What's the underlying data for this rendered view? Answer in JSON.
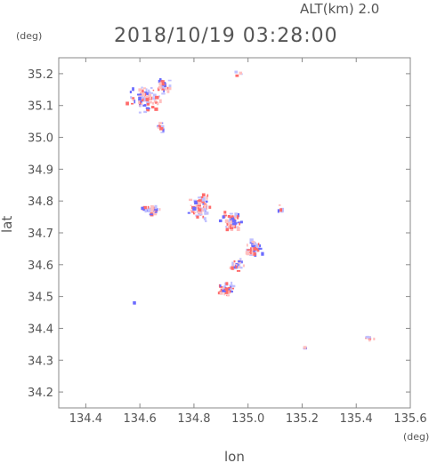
{
  "header": {
    "altitude": "ALT(km) 2.0",
    "datetime": "2018/10/19 03:28:00"
  },
  "chart_data": {
    "type": "scatter",
    "title": "2018/10/19 03:28:00",
    "subtitle": "ALT(km) 2.0",
    "xlabel": "lon",
    "ylabel": "lat",
    "x_unit": "(deg)",
    "y_unit": "(deg)",
    "xlim": [
      134.3,
      135.6
    ],
    "ylim": [
      34.15,
      35.25
    ],
    "xticks": [
      "134.4",
      "134.6",
      "134.8",
      "135.0",
      "135.2",
      "135.4",
      "135.6"
    ],
    "yticks": [
      "34.2",
      "34.3",
      "34.4",
      "34.5",
      "34.6",
      "34.7",
      "34.8",
      "34.9",
      "35.0",
      "35.1",
      "35.2"
    ],
    "colors": {
      "positive": "#ff6b6b",
      "negative": "#6b6bff",
      "pale_pos": "#ffc0c0",
      "pale_neg": "#c0c0ff"
    },
    "clusters": [
      {
        "lon": 134.62,
        "lat": 35.12,
        "spread_lon": 0.07,
        "spread_lat": 0.05,
        "count": 90
      },
      {
        "lon": 134.69,
        "lat": 35.16,
        "spread_lon": 0.03,
        "spread_lat": 0.03,
        "count": 35
      },
      {
        "lon": 134.68,
        "lat": 35.03,
        "spread_lon": 0.02,
        "spread_lat": 0.03,
        "count": 12
      },
      {
        "lon": 134.83,
        "lat": 34.78,
        "spread_lon": 0.06,
        "spread_lat": 0.05,
        "count": 70
      },
      {
        "lon": 134.65,
        "lat": 34.77,
        "spread_lon": 0.05,
        "spread_lat": 0.02,
        "count": 30
      },
      {
        "lon": 134.94,
        "lat": 34.73,
        "spread_lon": 0.05,
        "spread_lat": 0.04,
        "count": 55
      },
      {
        "lon": 135.02,
        "lat": 34.65,
        "spread_lon": 0.04,
        "spread_lat": 0.04,
        "count": 45
      },
      {
        "lon": 134.96,
        "lat": 34.6,
        "spread_lon": 0.04,
        "spread_lat": 0.03,
        "count": 25
      },
      {
        "lon": 134.92,
        "lat": 34.52,
        "spread_lon": 0.04,
        "spread_lat": 0.03,
        "count": 40
      },
      {
        "lon": 135.12,
        "lat": 34.77,
        "spread_lon": 0.02,
        "spread_lat": 0.02,
        "count": 6
      },
      {
        "lon": 135.45,
        "lat": 34.37,
        "spread_lon": 0.02,
        "spread_lat": 0.01,
        "count": 10
      },
      {
        "lon": 135.21,
        "lat": 34.34,
        "spread_lon": 0.005,
        "spread_lat": 0.005,
        "count": 4
      },
      {
        "lon": 134.58,
        "lat": 34.48,
        "spread_lon": 0.005,
        "spread_lat": 0.005,
        "count": 3
      },
      {
        "lon": 134.98,
        "lat": 35.2,
        "spread_lon": 0.04,
        "spread_lat": 0.01,
        "count": 4
      }
    ]
  }
}
